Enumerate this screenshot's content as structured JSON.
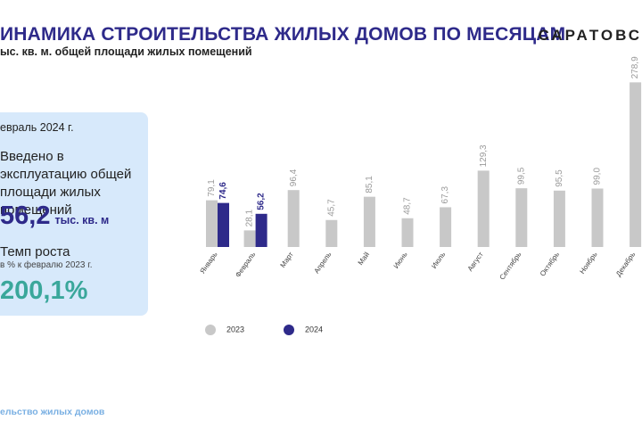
{
  "header": {
    "title": "ИНАМИКА СТРОИТЕЛЬСТВА ЖИЛЫХ ДОМОВ ПО МЕСЯЦАМ",
    "subtitle": "ыс. кв. м. общей площади жилых помещений",
    "brand": "САРАТОВС"
  },
  "card": {
    "period": "евраль 2024 г.",
    "description": "Введено в эксплуатацию общей площади жилых помещений",
    "value": "56,2",
    "unit": "тыс. кв. м",
    "growth_label": "Темп роста",
    "growth_note": "в % к февралю 2023 г.",
    "growth_value": "200,1%"
  },
  "footer": {
    "text": "ельство жилых домов"
  },
  "colors": {
    "series_2023": "#c8c8c8",
    "series_2024": "#2e2a8a",
    "title": "#2e2a8a",
    "card_bg": "#d7e9fb",
    "growth": "#3aa79b"
  },
  "chart_data": {
    "type": "bar",
    "categories": [
      "Январь",
      "Февраль",
      "Март",
      "Апрель",
      "Май",
      "Июнь",
      "Июль",
      "Август",
      "Сентябрь",
      "Октябрь",
      "Ноябрь",
      "Декабрь"
    ],
    "series": [
      {
        "name": "2023",
        "values": [
          79.1,
          28.1,
          96.4,
          45.7,
          85.1,
          48.7,
          67.3,
          129.3,
          99.5,
          95.5,
          99.0,
          278.9
        ],
        "labels": [
          "79,1",
          "28,1",
          "96,4",
          "45,7",
          "85,1",
          "48,7",
          "67,3",
          "129,3",
          "99,5",
          "95,5",
          "99,0",
          "278,9"
        ]
      },
      {
        "name": "2024",
        "values": [
          74.6,
          56.2,
          null,
          null,
          null,
          null,
          null,
          null,
          null,
          null,
          null,
          null
        ],
        "labels": [
          "74,6",
          "56,2",
          null,
          null,
          null,
          null,
          null,
          null,
          null,
          null,
          null,
          null
        ]
      }
    ],
    "ylim": [
      0,
      290
    ]
  }
}
